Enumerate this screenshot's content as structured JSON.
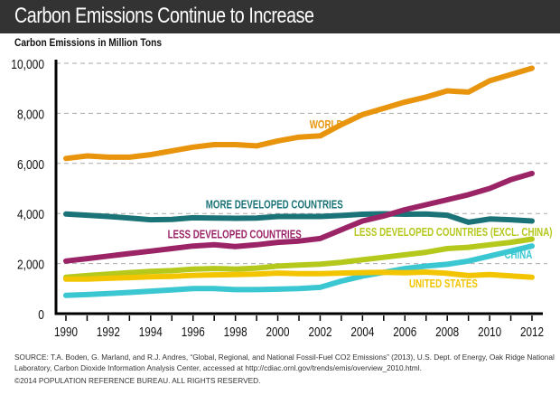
{
  "header": {
    "title": "Carbon Emissions Continue to Increase",
    "subtitle": "Carbon Emissions in Million Tons"
  },
  "footer": {
    "source": "SOURCE: T.A. Boden, G. Marland, and R.J. Andres, “Global, Regional, and National Fossil-Fuel CO2 Emissions” (2013), U.S. Dept. of Energy, Oak Ridge National Laboratory, Carbon Dioxide Information Analysis Center, accessed at http://cdiac.ornl.gov/trends/emis/overview_2010.html.",
    "copyright": "©2014 POPULATION REFERENCE BUREAU. ALL RIGHTS RESERVED."
  },
  "chart_data": {
    "type": "line",
    "title": "Carbon Emissions Continue to Increase",
    "ylabel": "Carbon Emissions in Million Tons",
    "xlabel": "",
    "x": [
      1990,
      1991,
      1992,
      1993,
      1994,
      1995,
      1996,
      1997,
      1998,
      1999,
      2000,
      2001,
      2002,
      2003,
      2004,
      2005,
      2006,
      2007,
      2008,
      2009,
      2010,
      2011,
      2012
    ],
    "xticks": [
      1990,
      1991,
      1992,
      1993,
      1994,
      1995,
      1996,
      1997,
      1998,
      1999,
      2000,
      2001,
      2002,
      2003,
      2004,
      2005,
      2006,
      2007,
      2008,
      2009,
      2010,
      2011,
      2012
    ],
    "xtick_labels": [
      "1990",
      "1992",
      "1994",
      "1996",
      "1998",
      "2000",
      "2002",
      "2004",
      "2006",
      "2008",
      "2010",
      "2012"
    ],
    "xtick_label_years": [
      1990,
      1992,
      1994,
      1996,
      1998,
      2000,
      2002,
      2004,
      2006,
      2008,
      2010,
      2012
    ],
    "yticks": [
      0,
      2000,
      4000,
      6000,
      8000,
      10000
    ],
    "ytick_labels": [
      "0",
      "2,000",
      "4,000",
      "6,000",
      "8,000",
      "10,000"
    ],
    "ylim": [
      0,
      10000
    ],
    "xlim": [
      1990,
      2012
    ],
    "grid": "horizontal-dashed",
    "legend": "inline-labels",
    "series": [
      {
        "name": "WORLD",
        "color": "#e8940c",
        "label_year": 2001.5,
        "label_value": 7400,
        "values": [
          6200,
          6300,
          6250,
          6250,
          6350,
          6500,
          6650,
          6750,
          6750,
          6700,
          6900,
          7050,
          7100,
          7550,
          7950,
          8200,
          8450,
          8650,
          8900,
          8850,
          9300,
          9550,
          9800
        ]
      },
      {
        "name": "MORE DEVELOPED COUNTRIES",
        "color": "#1a7377",
        "label_year": 1996.6,
        "label_value": 4200,
        "values": [
          3980,
          3930,
          3880,
          3820,
          3750,
          3760,
          3830,
          3820,
          3810,
          3820,
          3880,
          3880,
          3880,
          3920,
          3970,
          3990,
          3970,
          3980,
          3930,
          3650,
          3780,
          3750,
          3700
        ]
      },
      {
        "name": "LESS DEVELOPED COUNTRIES",
        "color": "#9b2467",
        "label_year": 1994.8,
        "label_value": 3010,
        "values": [
          2100,
          2200,
          2300,
          2400,
          2500,
          2600,
          2700,
          2750,
          2680,
          2750,
          2850,
          2900,
          3000,
          3350,
          3700,
          3900,
          4150,
          4350,
          4550,
          4750,
          5000,
          5350,
          5600
        ]
      },
      {
        "name": "LESS DEVELOPED COUNTRIES (EXCL. CHINA)",
        "color": "#b5c81c",
        "label_year": 2003.6,
        "label_value": 3110,
        "values": [
          1450,
          1520,
          1580,
          1640,
          1690,
          1720,
          1780,
          1800,
          1780,
          1820,
          1900,
          1940,
          1980,
          2050,
          2150,
          2250,
          2350,
          2450,
          2600,
          2650,
          2750,
          2850,
          2980
        ]
      },
      {
        "name": "CHINA",
        "color": "#3ac7d1",
        "label_year": 2010.7,
        "label_value": 2200,
        "values": [
          730,
          760,
          800,
          850,
          900,
          950,
          1000,
          1000,
          960,
          960,
          980,
          1000,
          1050,
          1300,
          1500,
          1650,
          1800,
          1900,
          1970,
          2100,
          2300,
          2500,
          2700
        ]
      },
      {
        "name": "UNITED STATES",
        "color": "#f2c500",
        "label_year": 2006.2,
        "label_value": 1050,
        "values": [
          1380,
          1380,
          1410,
          1440,
          1470,
          1490,
          1530,
          1550,
          1560,
          1580,
          1620,
          1600,
          1600,
          1620,
          1640,
          1650,
          1630,
          1660,
          1610,
          1520,
          1560,
          1510,
          1450
        ]
      }
    ]
  }
}
